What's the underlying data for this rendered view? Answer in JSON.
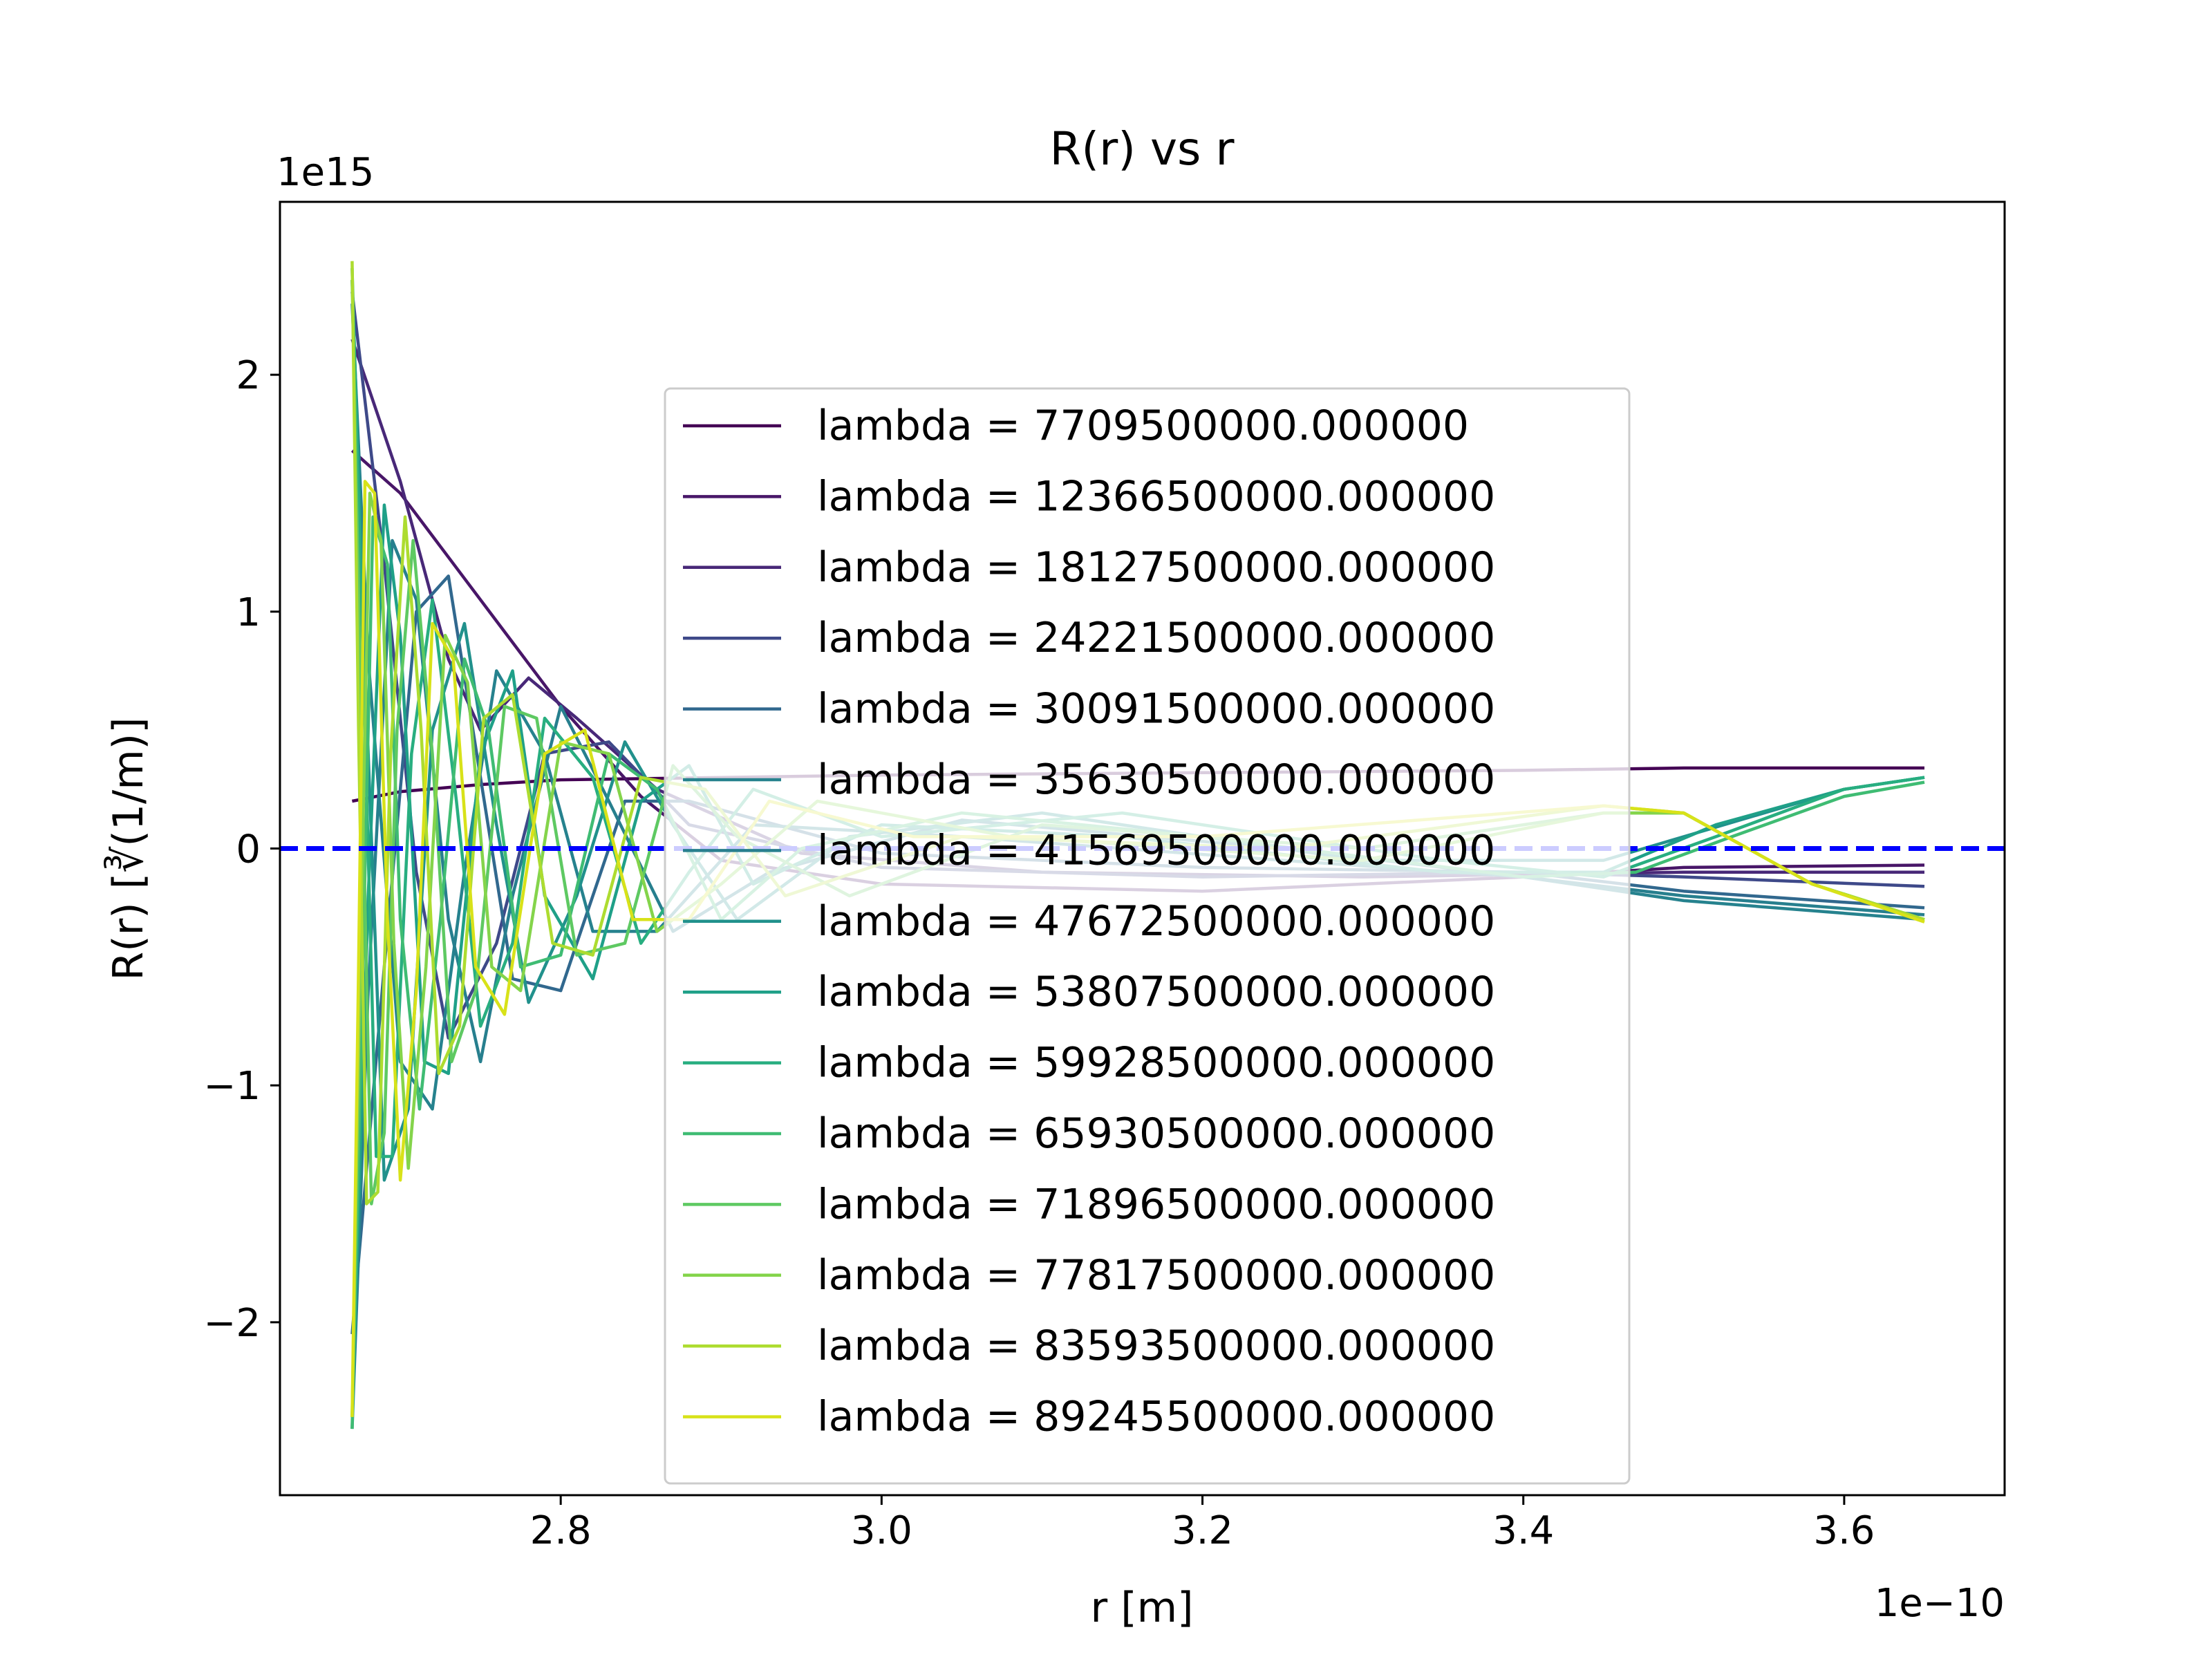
{
  "chart_data": {
    "type": "line",
    "title": "R(r) vs r",
    "xlabel": "r [m]",
    "ylabel": "R(r) [∛(1/m)]",
    "x_offset_text": "1e−10",
    "y_offset_text": "1e15",
    "x_scale": 1e-10,
    "y_scale": 1000000000000000.0,
    "xlim": [
      2.625,
      3.7
    ],
    "ylim": [
      -2.73,
      2.73
    ],
    "xticks": [
      2.8,
      3.0,
      3.2,
      3.4,
      3.6
    ],
    "xtick_labels": [
      "2.8",
      "3.0",
      "3.2",
      "3.4",
      "3.6"
    ],
    "yticks": [
      -2,
      -1,
      0,
      1,
      2
    ],
    "ytick_labels": [
      "−2",
      "−1",
      "0",
      "1",
      "2"
    ],
    "x_range": [
      2.67,
      3.65
    ],
    "zero_line": {
      "y": 0,
      "color": "#0000ff",
      "style": "dashed"
    },
    "legend_position": "center",
    "grid": false,
    "series": [
      {
        "name": "lambda = 7709500000.000000",
        "color": "#440154",
        "values": [
          [
            2.67,
            0.2
          ],
          [
            2.7,
            0.24
          ],
          [
            2.75,
            0.27
          ],
          [
            2.8,
            0.29
          ],
          [
            2.9,
            0.3
          ],
          [
            3.0,
            0.31
          ],
          [
            3.2,
            0.32
          ],
          [
            3.4,
            0.33
          ],
          [
            3.5,
            0.34
          ],
          [
            3.65,
            0.34
          ]
        ]
      },
      {
        "name": "lambda = 12366500000.000000",
        "color": "#481668",
        "values": [
          [
            2.67,
            1.68
          ],
          [
            2.7,
            1.5
          ],
          [
            2.75,
            1.05
          ],
          [
            2.8,
            0.6
          ],
          [
            2.85,
            0.22
          ],
          [
            2.9,
            -0.05
          ],
          [
            3.0,
            -0.15
          ],
          [
            3.2,
            -0.18
          ],
          [
            3.4,
            -0.12
          ],
          [
            3.5,
            -0.08
          ],
          [
            3.65,
            -0.07
          ]
        ]
      },
      {
        "name": "lambda = 18127500000.000000",
        "color": "#482878",
        "values": [
          [
            2.67,
            2.15
          ],
          [
            2.7,
            1.55
          ],
          [
            2.73,
            0.8
          ],
          [
            2.75,
            0.5
          ],
          [
            2.78,
            0.72
          ],
          [
            2.81,
            0.55
          ],
          [
            2.86,
            0.25
          ],
          [
            2.95,
            -0.02
          ],
          [
            3.1,
            -0.1
          ],
          [
            3.3,
            -0.12
          ],
          [
            3.5,
            -0.1
          ],
          [
            3.65,
            -0.1
          ]
        ]
      },
      {
        "name": "lambda = 24221500000.000000",
        "color": "#3e4989",
        "values": [
          [
            2.67,
            2.35
          ],
          [
            2.69,
            1.2
          ],
          [
            2.71,
            -0.1
          ],
          [
            2.73,
            -0.8
          ],
          [
            2.76,
            -0.4
          ],
          [
            2.79,
            0.4
          ],
          [
            2.83,
            0.45
          ],
          [
            2.88,
            0.1
          ],
          [
            3.0,
            -0.08
          ],
          [
            3.2,
            -0.12
          ],
          [
            3.4,
            -0.1
          ],
          [
            3.5,
            -0.12
          ],
          [
            3.65,
            -0.16
          ]
        ]
      },
      {
        "name": "lambda = 30091500000.000000",
        "color": "#31688e",
        "values": [
          [
            2.67,
            -2.05
          ],
          [
            2.69,
            -0.5
          ],
          [
            2.71,
            1.0
          ],
          [
            2.73,
            1.15
          ],
          [
            2.75,
            0.3
          ],
          [
            2.77,
            -0.55
          ],
          [
            2.8,
            -0.6
          ],
          [
            2.84,
            0.2
          ],
          [
            2.88,
            0.2
          ],
          [
            3.0,
            -0.02
          ],
          [
            3.2,
            -0.08
          ],
          [
            3.4,
            -0.1
          ],
          [
            3.5,
            -0.18
          ],
          [
            3.65,
            -0.25
          ]
        ]
      },
      {
        "name": "lambda = 35630500000.000000",
        "color": "#26828e",
        "values": [
          [
            2.67,
            2.3
          ],
          [
            2.68,
            0.8
          ],
          [
            2.7,
            -0.9
          ],
          [
            2.72,
            -1.1
          ],
          [
            2.74,
            -0.1
          ],
          [
            2.76,
            0.75
          ],
          [
            2.79,
            0.4
          ],
          [
            2.82,
            -0.35
          ],
          [
            2.86,
            -0.35
          ],
          [
            2.92,
            0.1
          ],
          [
            3.05,
            0.05
          ],
          [
            3.25,
            -0.05
          ],
          [
            3.4,
            -0.12
          ],
          [
            3.5,
            -0.22
          ],
          [
            3.65,
            -0.3
          ]
        ]
      },
      {
        "name": "lambda = 41569500000.000000",
        "color": "#277f8e",
        "values": [
          [
            2.67,
            -2.45
          ],
          [
            2.68,
            -0.6
          ],
          [
            2.695,
            1.3
          ],
          [
            2.71,
            1.05
          ],
          [
            2.73,
            -0.3
          ],
          [
            2.75,
            -0.9
          ],
          [
            2.77,
            -0.2
          ],
          [
            2.8,
            0.6
          ],
          [
            2.83,
            0.2
          ],
          [
            2.87,
            -0.35
          ],
          [
            2.93,
            -0.1
          ],
          [
            3.05,
            0.12
          ],
          [
            3.25,
            0.0
          ],
          [
            3.4,
            -0.12
          ],
          [
            3.5,
            -0.2
          ],
          [
            3.65,
            -0.28
          ]
        ]
      },
      {
        "name": "lambda = 47672500000.000000",
        "color": "#21918c",
        "values": [
          [
            2.67,
            2.4
          ],
          [
            2.68,
            0.4
          ],
          [
            2.69,
            -1.4
          ],
          [
            2.705,
            -1.1
          ],
          [
            2.72,
            0.5
          ],
          [
            2.74,
            0.95
          ],
          [
            2.76,
            0.1
          ],
          [
            2.78,
            -0.65
          ],
          [
            2.81,
            -0.2
          ],
          [
            2.84,
            0.45
          ],
          [
            2.87,
            0.1
          ],
          [
            2.91,
            -0.3
          ],
          [
            2.98,
            0.05
          ],
          [
            3.1,
            0.15
          ],
          [
            3.3,
            -0.05
          ],
          [
            3.45,
            -0.05
          ],
          [
            3.5,
            0.05
          ],
          [
            3.6,
            0.25
          ],
          [
            3.65,
            0.3
          ]
        ]
      },
      {
        "name": "lambda = 53807500000.000000",
        "color": "#1fa088",
        "values": [
          [
            2.67,
            -2.4
          ],
          [
            2.68,
            -0.2
          ],
          [
            2.69,
            1.45
          ],
          [
            2.7,
            0.9
          ],
          [
            2.715,
            -0.9
          ],
          [
            2.73,
            -0.95
          ],
          [
            2.75,
            0.4
          ],
          [
            2.77,
            0.75
          ],
          [
            2.79,
            -0.2
          ],
          [
            2.82,
            -0.55
          ],
          [
            2.85,
            0.2
          ],
          [
            2.88,
            0.35
          ],
          [
            2.92,
            -0.15
          ],
          [
            3.0,
            0.1
          ],
          [
            3.15,
            0.05
          ],
          [
            3.35,
            -0.1
          ],
          [
            3.45,
            -0.1
          ],
          [
            3.52,
            0.1
          ],
          [
            3.6,
            0.25
          ],
          [
            3.65,
            0.3
          ]
        ]
      },
      {
        "name": "lambda = 59928500000.000000",
        "color": "#28ae80",
        "values": [
          [
            2.67,
            2.45
          ],
          [
            2.678,
            0.5
          ],
          [
            2.685,
            -1.3
          ],
          [
            2.695,
            -1.3
          ],
          [
            2.707,
            0.4
          ],
          [
            2.72,
            1.05
          ],
          [
            2.735,
            0.2
          ],
          [
            2.75,
            -0.75
          ],
          [
            2.77,
            -0.4
          ],
          [
            2.79,
            0.55
          ],
          [
            2.82,
            0.3
          ],
          [
            2.85,
            -0.4
          ],
          [
            2.88,
            -0.1
          ],
          [
            2.92,
            0.25
          ],
          [
            3.0,
            0.05
          ],
          [
            3.15,
            0.15
          ],
          [
            3.35,
            -0.05
          ],
          [
            3.45,
            -0.12
          ],
          [
            3.52,
            0.05
          ],
          [
            3.6,
            0.25
          ],
          [
            3.65,
            0.3
          ]
        ]
      },
      {
        "name": "lambda = 65930500000.000000",
        "color": "#3fbc73",
        "values": [
          [
            2.67,
            -2.45
          ],
          [
            2.677,
            -0.4
          ],
          [
            2.683,
            1.4
          ],
          [
            2.692,
            1.2
          ],
          [
            2.7,
            -0.3
          ],
          [
            2.712,
            -1.1
          ],
          [
            2.725,
            -0.3
          ],
          [
            2.74,
            0.8
          ],
          [
            2.755,
            0.5
          ],
          [
            2.775,
            -0.5
          ],
          [
            2.8,
            -0.45
          ],
          [
            2.83,
            0.4
          ],
          [
            2.86,
            0.25
          ],
          [
            2.9,
            -0.3
          ],
          [
            2.95,
            0.0
          ],
          [
            3.05,
            0.15
          ],
          [
            3.2,
            0.05
          ],
          [
            3.4,
            -0.12
          ],
          [
            3.47,
            -0.1
          ],
          [
            3.53,
            0.05
          ],
          [
            3.6,
            0.22
          ],
          [
            3.65,
            0.28
          ]
        ]
      },
      {
        "name": "lambda = 71896500000.000000",
        "color": "#5ec962",
        "values": [
          [
            2.67,
            2.4
          ],
          [
            2.676,
            0.4
          ],
          [
            2.682,
            -1.5
          ],
          [
            2.69,
            -1.2
          ],
          [
            2.698,
            0.5
          ],
          [
            2.708,
            1.3
          ],
          [
            2.72,
            0.4
          ],
          [
            2.732,
            -0.9
          ],
          [
            2.747,
            -0.6
          ],
          [
            2.765,
            0.6
          ],
          [
            2.785,
            0.55
          ],
          [
            2.81,
            -0.45
          ],
          [
            2.84,
            -0.4
          ],
          [
            2.87,
            0.35
          ],
          [
            2.91,
            0.05
          ],
          [
            2.98,
            -0.2
          ],
          [
            3.1,
            0.1
          ],
          [
            3.3,
            0.0
          ],
          [
            3.45,
            0.15
          ],
          [
            3.5,
            0.15
          ],
          [
            3.58,
            -0.15
          ],
          [
            3.65,
            -0.3
          ]
        ]
      },
      {
        "name": "lambda = 77817500000.000000",
        "color": "#84d44b",
        "values": [
          [
            2.67,
            -2.4
          ],
          [
            2.675,
            -0.5
          ],
          [
            2.681,
            1.5
          ],
          [
            2.688,
            1.3
          ],
          [
            2.696,
            -0.4
          ],
          [
            2.705,
            -1.35
          ],
          [
            2.716,
            -0.5
          ],
          [
            2.728,
            0.9
          ],
          [
            2.742,
            0.7
          ],
          [
            2.757,
            -0.5
          ],
          [
            2.775,
            -0.6
          ],
          [
            2.8,
            0.45
          ],
          [
            2.83,
            0.4
          ],
          [
            2.86,
            -0.35
          ],
          [
            2.9,
            -0.15
          ],
          [
            2.96,
            0.2
          ],
          [
            3.08,
            0.05
          ],
          [
            3.3,
            -0.05
          ],
          [
            3.45,
            0.15
          ],
          [
            3.5,
            0.15
          ],
          [
            3.58,
            -0.15
          ],
          [
            3.65,
            -0.3
          ]
        ]
      },
      {
        "name": "lambda = 83593500000.000000",
        "color": "#addc30",
        "values": [
          [
            2.67,
            2.48
          ],
          [
            2.674,
            0.5
          ],
          [
            2.679,
            -1.5
          ],
          [
            2.686,
            -1.45
          ],
          [
            2.694,
            0.4
          ],
          [
            2.703,
            1.4
          ],
          [
            2.713,
            0.5
          ],
          [
            2.724,
            -0.95
          ],
          [
            2.737,
            -0.75
          ],
          [
            2.752,
            0.55
          ],
          [
            2.77,
            0.65
          ],
          [
            2.795,
            -0.4
          ],
          [
            2.82,
            -0.45
          ],
          [
            2.85,
            0.3
          ],
          [
            2.89,
            0.25
          ],
          [
            2.94,
            -0.2
          ],
          [
            3.05,
            0.05
          ],
          [
            3.25,
            0.0
          ],
          [
            3.45,
            0.18
          ],
          [
            3.5,
            0.15
          ],
          [
            3.58,
            -0.15
          ],
          [
            3.65,
            -0.3
          ]
        ]
      },
      {
        "name": "lambda = 89245500000.000000",
        "color": "#d8e219",
        "values": [
          [
            2.67,
            -2.4
          ],
          [
            2.674,
            -0.5
          ],
          [
            2.678,
            1.55
          ],
          [
            2.684,
            1.5
          ],
          [
            2.692,
            -0.3
          ],
          [
            2.7,
            -1.4
          ],
          [
            2.71,
            -0.6
          ],
          [
            2.72,
            0.95
          ],
          [
            2.733,
            0.8
          ],
          [
            2.747,
            -0.5
          ],
          [
            2.765,
            -0.7
          ],
          [
            2.79,
            0.4
          ],
          [
            2.815,
            0.5
          ],
          [
            2.845,
            -0.3
          ],
          [
            2.88,
            -0.3
          ],
          [
            2.93,
            0.2
          ],
          [
            3.02,
            0.05
          ],
          [
            3.2,
            0.05
          ],
          [
            3.45,
            0.18
          ],
          [
            3.5,
            0.15
          ],
          [
            3.58,
            -0.15
          ],
          [
            3.65,
            -0.31
          ]
        ]
      }
    ]
  }
}
